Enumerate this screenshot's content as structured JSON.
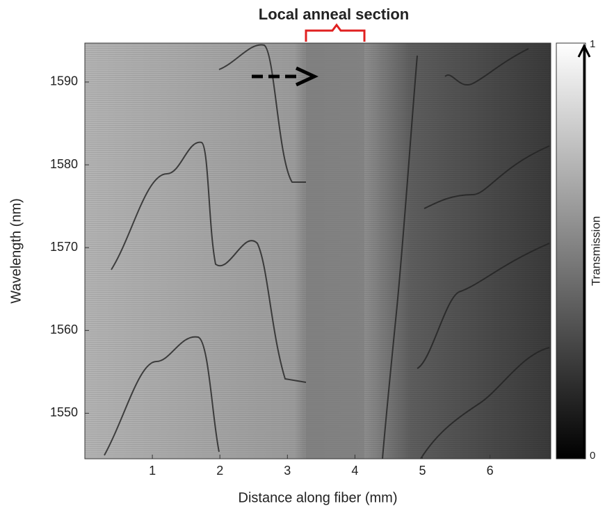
{
  "chart_data": {
    "type": "heatmap",
    "title": "Local anneal section",
    "xlabel": "Distance along fiber (mm)",
    "ylabel": "Wavelength (nm)",
    "xlim": [
      0,
      6.9
    ],
    "xticks": [
      1,
      2,
      3,
      4,
      5,
      6
    ],
    "ylim": [
      1544.5,
      1594.7
    ],
    "yticks": [
      1550,
      1560,
      1570,
      1580,
      1590
    ],
    "colorbar": {
      "label": "Transmission",
      "lim": [
        0,
        1
      ],
      "ticks": [
        0,
        1
      ],
      "colors": [
        "#000000",
        "#ffffff"
      ]
    }
  }
}
